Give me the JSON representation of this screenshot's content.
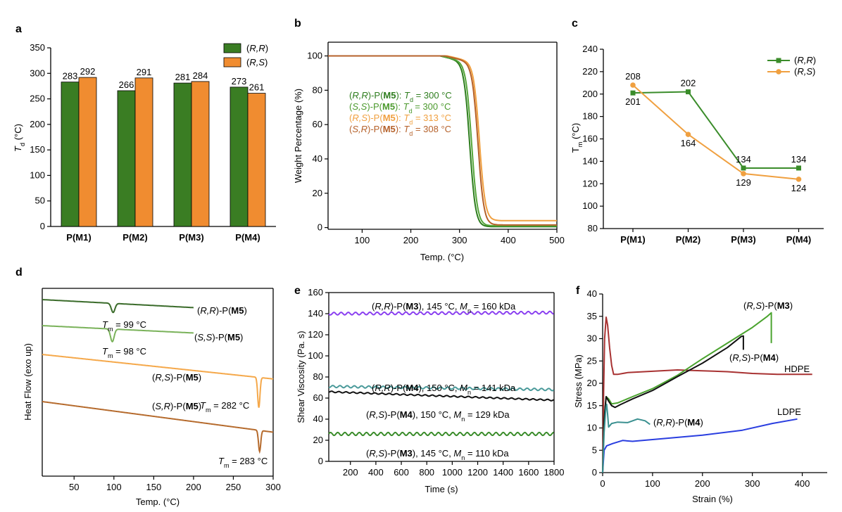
{
  "chart_data": [
    {
      "panel": "a",
      "type": "bar",
      "ylabel": "T",
      "ylabel_sub": "d",
      "ylabel_unit": " (°C)",
      "ylim": [
        0,
        350
      ],
      "yticks": [
        0,
        50,
        100,
        150,
        200,
        250,
        300,
        350
      ],
      "categories": [
        "P(M1)",
        "P(M2)",
        "P(M3)",
        "P(M4)"
      ],
      "grid": false,
      "legend": "top-right",
      "series": [
        {
          "name": "(R,R)",
          "color": "#3a7d23",
          "values": [
            283,
            266,
            281,
            273
          ]
        },
        {
          "name": "(R,S)",
          "color": "#f08c30",
          "values": [
            292,
            291,
            284,
            261
          ]
        }
      ]
    },
    {
      "panel": "b",
      "type": "line",
      "xlabel": "Temp. (°C)",
      "ylabel": "Weight Percentage (%)",
      "xlim": [
        30,
        500
      ],
      "ylim": [
        0,
        100
      ],
      "xticks": [
        100,
        200,
        300,
        400,
        500
      ],
      "yticks": [
        0,
        20,
        40,
        60,
        80,
        100
      ],
      "grid": false,
      "series": [
        {
          "name": "(R,R)-P(M5): Td = 300 °C",
          "color": "#2e7d1e",
          "onset": 260,
          "mid": 321,
          "width": 6,
          "residue": 0.5
        },
        {
          "name": "(S,S)-P(M5): Td = 300 °C",
          "color": "#55a63a",
          "onset": 262,
          "mid": 325,
          "width": 6,
          "residue": 1.0
        },
        {
          "name": "(R,S)-P(M5): Td = 313 °C",
          "color": "#f0a040",
          "onset": 275,
          "mid": 341,
          "width": 6,
          "residue": 4.0
        },
        {
          "name": "(S,R)-P(M5): Td = 308 °C",
          "color": "#b5612a",
          "onset": 270,
          "mid": 338,
          "width": 6,
          "residue": 1.5
        }
      ],
      "legend_lines": [
        {
          "pre": "(",
          "it1": "R,R",
          "mid": ")-P(",
          "bold": "M5",
          "post": "): ",
          "it2": "T",
          "sub": "d",
          "tail": " = 300 °C",
          "color": "#2e7d1e"
        },
        {
          "pre": "(",
          "it1": "S,S",
          "mid": ")-P(",
          "bold": "M5",
          "post": "): ",
          "it2": "T",
          "sub": "d",
          "tail": " = 300 °C",
          "color": "#4c9a2e"
        },
        {
          "pre": "(",
          "it1": "R,S",
          "mid": ")-P(",
          "bold": "M5",
          "post": "): ",
          "it2": "T",
          "sub": "d",
          "tail": " = 313 °C",
          "color": "#f0a040"
        },
        {
          "pre": "(",
          "it1": "S,R",
          "mid": ")-P(",
          "bold": "M5",
          "post": "): ",
          "it2": "T",
          "sub": "d",
          "tail": " = 308 °C",
          "color": "#b5612a"
        }
      ]
    },
    {
      "panel": "c",
      "type": "line",
      "ylabel": "T",
      "ylabel_sub": "m",
      "ylabel_unit": " (°C)",
      "ylim": [
        80,
        240
      ],
      "yticks": [
        80,
        100,
        120,
        140,
        160,
        180,
        200,
        220,
        240
      ],
      "categories": [
        "P(M1)",
        "P(M2)",
        "P(M3)",
        "P(M4)"
      ],
      "grid": false,
      "legend": "top-right",
      "series": [
        {
          "name": "(R,R)",
          "color": "#3a8c2a",
          "marker": "square",
          "values": [
            201,
            202,
            134,
            134
          ]
        },
        {
          "name": "(R,S)",
          "color": "#f0a040",
          "marker": "circle",
          "values": [
            208,
            164,
            129,
            124
          ]
        }
      ],
      "labels": [
        {
          "series": 0,
          "index": 0,
          "text": "201",
          "pos": "below"
        },
        {
          "series": 1,
          "index": 0,
          "text": "208",
          "pos": "above"
        },
        {
          "series": 0,
          "index": 1,
          "text": "202",
          "pos": "above"
        },
        {
          "series": 1,
          "index": 1,
          "text": "164",
          "pos": "below"
        },
        {
          "series": 0,
          "index": 2,
          "text": "134",
          "pos": "above"
        },
        {
          "series": 1,
          "index": 2,
          "text": "129",
          "pos": "below"
        },
        {
          "series": 0,
          "index": 3,
          "text": "134",
          "pos": "above"
        },
        {
          "series": 1,
          "index": 3,
          "text": "124",
          "pos": "below"
        }
      ]
    },
    {
      "panel": "d",
      "type": "line",
      "xlabel": "Temp. (°C)",
      "ylabel": "Heat Flow (exo up)",
      "xlim": [
        10,
        300
      ],
      "xticks": [
        50,
        100,
        150,
        200,
        250,
        300
      ],
      "grid": false,
      "series": [
        {
          "name": "(R,R)-P(M5)",
          "color": "#3a6b2a",
          "x_start": 10,
          "x_end": 200,
          "base": 0,
          "slope": 0.06,
          "peak_x": 99,
          "peak_depth": 13,
          "peak_w": 3.2
        },
        {
          "name": "(S,S)-P(M5)",
          "color": "#7ab25a",
          "x_start": 10,
          "x_end": 200,
          "base": 37,
          "slope": 0.055,
          "peak_x": 98,
          "peak_depth": 18,
          "peak_w": 3.2
        },
        {
          "name": "(R,S)-P(M5)",
          "color": "#f5a84a",
          "x_start": 10,
          "x_end": 300,
          "base": 78,
          "slope": 0.12,
          "peak_x": 282,
          "peak_depth": 43,
          "peak_w": 2.0
        },
        {
          "name": "(S,R)-P(M5)",
          "color": "#b56a2c",
          "x_start": 10,
          "x_end": 300,
          "base": 145,
          "slope": 0.15,
          "peak_x": 283,
          "peak_depth": 30,
          "peak_w": 2.0
        }
      ],
      "annotations": [
        {
          "pre": "(",
          "it": "R,R",
          "mid": ")-P(",
          "bold": "M5",
          "post": ")"
        },
        {
          "pre": "",
          "it": "T",
          "sub": "m",
          "tail": " = 99 °C"
        },
        {
          "pre": "(",
          "it": "S,S",
          "mid": ")-P(",
          "bold": "M5",
          "post": ")"
        },
        {
          "pre": "",
          "it": "T",
          "sub": "m",
          "tail": " = 98 °C"
        },
        {
          "pre": "(",
          "it": "R,S",
          "mid": ")-P(",
          "bold": "M5",
          "post": ")"
        },
        {
          "pre": "",
          "it": "T",
          "sub": "m",
          "tail": " = 282 °C"
        },
        {
          "pre": "(",
          "it": "S,R",
          "mid": ")-P(",
          "bold": "M5",
          "post": ")"
        },
        {
          "pre": "",
          "it": "T",
          "sub": "m",
          "tail": " = 283 °C"
        }
      ]
    },
    {
      "panel": "e",
      "type": "line",
      "xlabel": "Time (s)",
      "ylabel": "Shear Viscosity (Pa. s)",
      "xlim": [
        30,
        1800
      ],
      "ylim": [
        0,
        160
      ],
      "xticks": [
        200,
        400,
        600,
        800,
        1000,
        1200,
        1400,
        1600,
        1800
      ],
      "yticks": [
        0,
        20,
        40,
        60,
        80,
        100,
        120,
        140,
        160
      ],
      "grid": false,
      "series": [
        {
          "name": "(R,R)-P(M3), 145 °C, Mn = 160 kDa",
          "color": "#8a3ff0",
          "start": 140,
          "end": 141,
          "noise": 1.2
        },
        {
          "name": "(R,R)-P(M4), 150 °C, Mn = 141 kDa",
          "color": "#4a9a9a",
          "start": 71,
          "end": 68,
          "noise": 1.0
        },
        {
          "name": "(R,S)-P(M4), 150 °C, Mn = 129 kDa",
          "color": "#111111",
          "start": 66,
          "end": 58,
          "noise": 0.6
        },
        {
          "name": "(R,S)-P(M3), 145 °C, Mn = 110 kDa",
          "color": "#3a8c2a",
          "start": 26,
          "end": 26,
          "noise": 1.4
        }
      ],
      "annotations": [
        {
          "pre": "(",
          "it": "R,R",
          "mid": ")-P(",
          "bold": "M3",
          "post": "), 145 °C, ",
          "it2": "M",
          "sub": "n",
          "tail": " = 160 kDa"
        },
        {
          "pre": "(",
          "it": "R,R",
          "mid": ")-P(",
          "bold": "M4",
          "post": "), 150 °C, ",
          "it2": "M",
          "sub": "n",
          "tail": " = 141 kDa"
        },
        {
          "pre": "(",
          "it": "R,S",
          "mid": ")-P(",
          "bold": "M4",
          "post": "), 150 °C, ",
          "it2": "M",
          "sub": "n",
          "tail": " = 129 kDa"
        },
        {
          "pre": "(",
          "it": "R,S",
          "mid": ")-P(",
          "bold": "M3",
          "post": "), 145 °C, ",
          "it2": "M",
          "sub": "n",
          "tail": " = 110 kDa"
        }
      ]
    },
    {
      "panel": "f",
      "type": "line",
      "xlabel": "Strain (%)",
      "ylabel": "Stress (MPa)",
      "xlim": [
        0,
        450
      ],
      "ylim": [
        0,
        40
      ],
      "xticks": [
        0,
        100,
        200,
        300,
        400
      ],
      "yticks": [
        0,
        5,
        10,
        15,
        20,
        25,
        30,
        35,
        40
      ],
      "grid": false,
      "series": [
        {
          "name": "HDPE",
          "color": "#a83232",
          "points": [
            [
              0,
              0
            ],
            [
              2,
              18
            ],
            [
              4,
              30
            ],
            [
              7,
              34.8
            ],
            [
              10,
              33
            ],
            [
              14,
              28
            ],
            [
              18,
              24
            ],
            [
              22,
              22
            ],
            [
              30,
              22
            ],
            [
              50,
              22.4
            ],
            [
              100,
              22.7
            ],
            [
              150,
              23
            ],
            [
              200,
              22.8
            ],
            [
              250,
              22.6
            ],
            [
              300,
              22.2
            ],
            [
              350,
              22
            ],
            [
              400,
              22
            ],
            [
              420,
              22
            ]
          ]
        },
        {
          "name": "LDPE",
          "color": "#2a3ee0",
          "points": [
            [
              0,
              0
            ],
            [
              3,
              5
            ],
            [
              8,
              6
            ],
            [
              20,
              6.5
            ],
            [
              40,
              7.2
            ],
            [
              60,
              7
            ],
            [
              80,
              7.2
            ],
            [
              120,
              7.6
            ],
            [
              200,
              8.4
            ],
            [
              280,
              9.5
            ],
            [
              340,
              11
            ],
            [
              390,
              12
            ]
          ]
        },
        {
          "name": "(R,S)-P(M3)",
          "color": "#4aa32e",
          "points": [
            [
              0,
              0
            ],
            [
              3,
              12
            ],
            [
              7,
              17
            ],
            [
              12,
              16.5
            ],
            [
              18,
              15.4
            ],
            [
              30,
              15.6
            ],
            [
              60,
              17
            ],
            [
              100,
              18.8
            ],
            [
              150,
              21.8
            ],
            [
              200,
              25.5
            ],
            [
              250,
              29
            ],
            [
              300,
              32.5
            ],
            [
              330,
              35
            ],
            [
              338,
              35.8
            ],
            [
              338,
              29
            ]
          ]
        },
        {
          "name": "(R,S)-P(M4)",
          "color": "#111111",
          "points": [
            [
              0,
              0
            ],
            [
              3,
              12
            ],
            [
              7,
              17
            ],
            [
              12,
              16
            ],
            [
              18,
              15
            ],
            [
              25,
              14.6
            ],
            [
              35,
              15.2
            ],
            [
              60,
              16.5
            ],
            [
              100,
              18.4
            ],
            [
              150,
              21.5
            ],
            [
              200,
              24.5
            ],
            [
              250,
              28
            ],
            [
              278,
              30.5
            ],
            [
              282,
              30.6
            ],
            [
              282,
              27.5
            ]
          ]
        },
        {
          "name": "(R,R)-P(M4)",
          "color": "#3a9090",
          "points": [
            [
              0,
              0
            ],
            [
              3,
              9
            ],
            [
              6,
              14
            ],
            [
              8,
              15.3
            ],
            [
              10,
              13
            ],
            [
              12,
              10.2
            ],
            [
              18,
              11
            ],
            [
              30,
              11.3
            ],
            [
              50,
              11.2
            ],
            [
              70,
              12
            ],
            [
              85,
              11.6
            ],
            [
              95,
              10.8
            ]
          ]
        }
      ],
      "annotations": [
        {
          "pre": "(",
          "it": "R,S",
          "mid": ")-P(",
          "bold": "M3",
          "post": ")"
        },
        {
          "pre": "(",
          "it": "R,S",
          "mid": ")-P(",
          "bold": "M4",
          "post": ")"
        },
        {
          "pre": "HDPE",
          "it": "",
          "mid": "",
          "bold": "",
          "post": ""
        },
        {
          "pre": "LDPE",
          "it": "",
          "mid": "",
          "bold": "",
          "post": ""
        },
        {
          "pre": "(",
          "it": "R,R",
          "mid": ")-P(",
          "bold": "M4",
          "post": ")"
        }
      ]
    }
  ],
  "panel_letters": [
    "a",
    "b",
    "c",
    "d",
    "e",
    "f"
  ],
  "legend_a": [
    "(R,R)",
    "(R,S)"
  ],
  "legend_c": [
    "(R,R)",
    "(R,S)"
  ]
}
